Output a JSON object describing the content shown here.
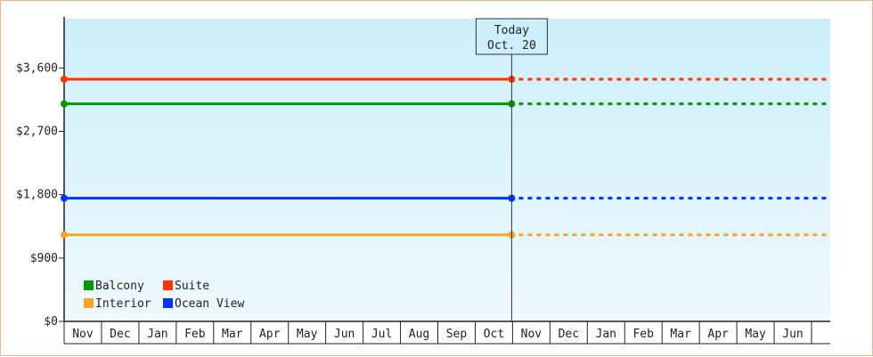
{
  "chart_data": {
    "type": "line",
    "x_categories": [
      "Nov",
      "Dec",
      "Jan",
      "Feb",
      "Mar",
      "Apr",
      "May",
      "Jun",
      "Jul",
      "Aug",
      "Sep",
      "Oct",
      "Nov",
      "Dec",
      "Jan",
      "Feb",
      "Mar",
      "Apr",
      "May",
      "Jun"
    ],
    "today_index": 11,
    "today_label": "Today",
    "today_date": "Oct. 20",
    "ylim": [
      0,
      4300
    ],
    "y_ticks": [
      {
        "value": 0,
        "label": "$0"
      },
      {
        "value": 900,
        "label": "$900"
      },
      {
        "value": 1800,
        "label": "$1,800"
      },
      {
        "value": 2700,
        "label": "$2,700"
      },
      {
        "value": 3600,
        "label": "$3,600"
      }
    ],
    "series": [
      {
        "name": "Suite",
        "color": "#ff3300",
        "value": 3440
      },
      {
        "name": "Balcony",
        "color": "#009900",
        "value": 3090
      },
      {
        "name": "Ocean View",
        "color": "#0033ff",
        "value": 1750
      },
      {
        "name": "Interior",
        "color": "#f5a623",
        "value": 1230
      }
    ],
    "legend": {
      "placement": "bottom-left",
      "order": [
        "Balcony",
        "Suite",
        "Interior",
        "Ocean View"
      ]
    },
    "background_gradient": [
      "#cceffb",
      "#eef9fe"
    ]
  }
}
